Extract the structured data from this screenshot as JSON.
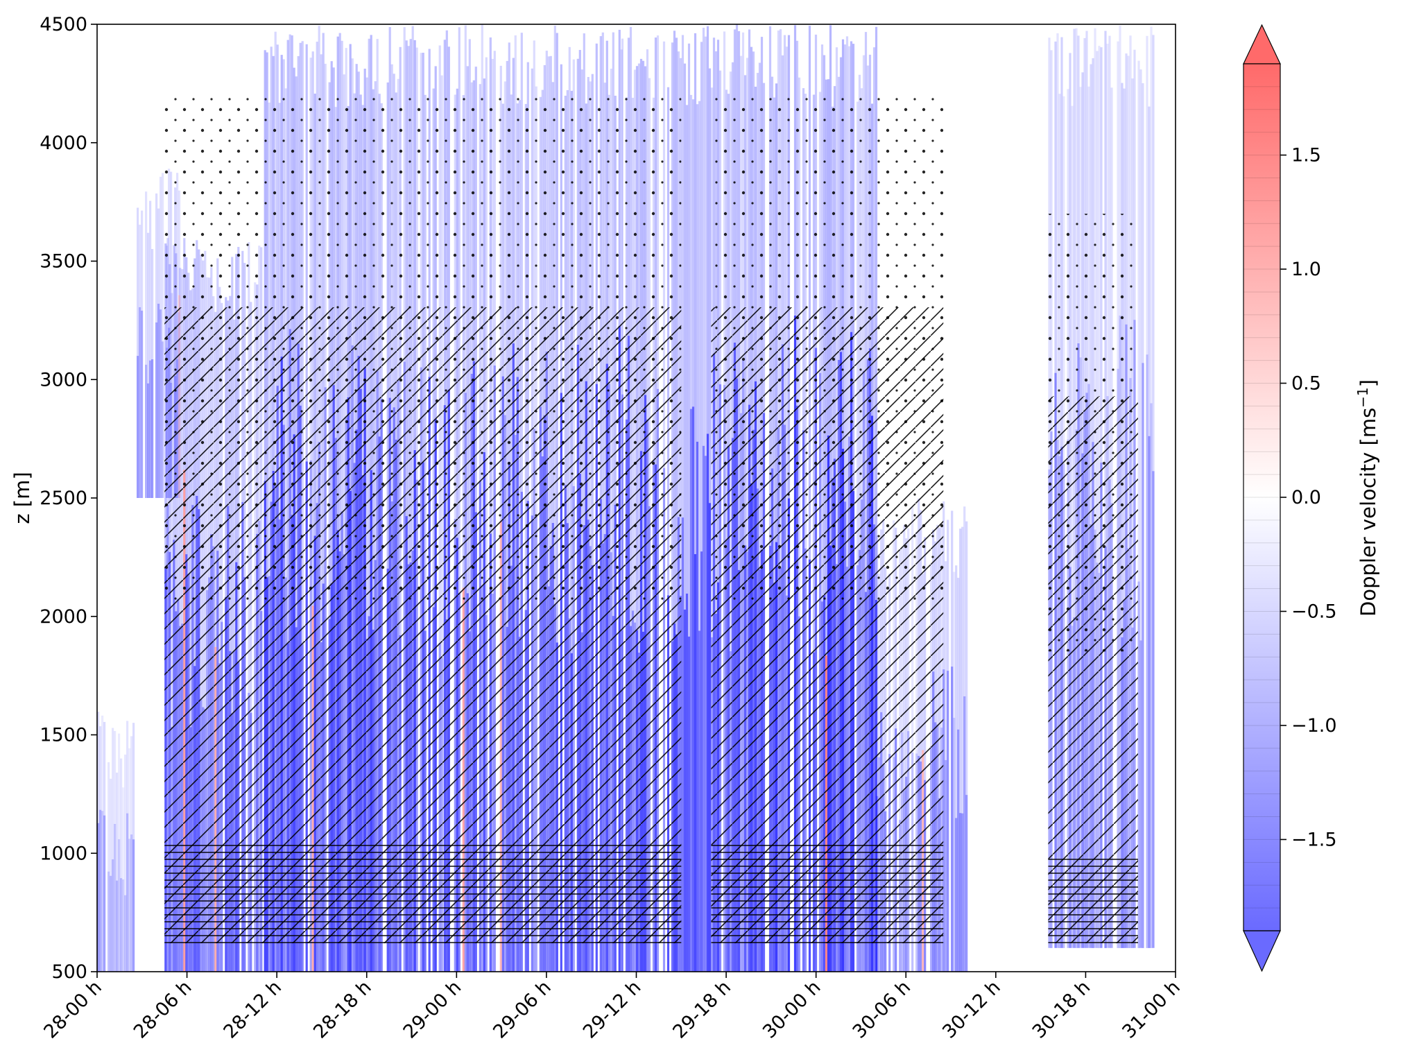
{
  "chart_data": {
    "type": "heatmap",
    "title": "",
    "xlabel": "",
    "ylabel": "z [m]",
    "x_ticks": [
      "28-00 h",
      "28-06 h",
      "28-12 h",
      "28-18 h",
      "29-00 h",
      "29-06 h",
      "29-12 h",
      "29-18 h",
      "30-00 h",
      "30-06 h",
      "30-12 h",
      "30-18 h",
      "31-00 h"
    ],
    "x_range_hours": [
      0,
      72
    ],
    "y_ticks": [
      500,
      1000,
      1500,
      2000,
      2500,
      3000,
      3500,
      4000,
      4500
    ],
    "ylim": [
      500,
      4500
    ],
    "grid": false,
    "colorbar": {
      "label": "Doppler velocity [ms",
      "label_sup": "−1",
      "label_end": "]",
      "ticks": [
        {
          "value": -1.5,
          "label": "−1.5"
        },
        {
          "value": -1.0,
          "label": "−1.0"
        },
        {
          "value": -0.5,
          "label": "−0.5"
        },
        {
          "value": 0.0,
          "label": "0.0"
        },
        {
          "value": 0.5,
          "label": "0.5"
        },
        {
          "value": 1.0,
          "label": "1.0"
        },
        {
          "value": 1.5,
          "label": "1.5"
        }
      ],
      "range": [
        -1.9,
        1.9
      ],
      "extend": "both",
      "cmap": "bwr",
      "low_color": "#6a6aff",
      "mid_color": "#ffffff",
      "high_color": "#ff6a6a"
    },
    "cloud_periods": [
      {
        "start_h": 0.0,
        "end_h": 2.5,
        "base_m": 500,
        "top_m": 1600,
        "intensity": 0.45
      },
      {
        "start_h": 2.5,
        "end_h": 5.5,
        "base_m": 2500,
        "top_m": 3900,
        "intensity": 0.5
      },
      {
        "start_h": 4.5,
        "end_h": 11.0,
        "base_m": 500,
        "top_m": 3600,
        "intensity": 0.75
      },
      {
        "start_h": 11.0,
        "end_h": 23.0,
        "base_m": 500,
        "top_m": 4500,
        "intensity": 0.85
      },
      {
        "start_h": 23.0,
        "end_h": 35.0,
        "base_m": 500,
        "top_m": 4500,
        "intensity": 0.8
      },
      {
        "start_h": 35.0,
        "end_h": 45.0,
        "base_m": 500,
        "top_m": 4500,
        "intensity": 0.8
      },
      {
        "start_h": 45.0,
        "end_h": 52.0,
        "base_m": 500,
        "top_m": 4500,
        "intensity": 0.9
      },
      {
        "start_h": 52.0,
        "end_h": 58.0,
        "base_m": 500,
        "top_m": 2500,
        "intensity": 0.55
      },
      {
        "start_h": 63.5,
        "end_h": 70.5,
        "base_m": 600,
        "top_m": 4500,
        "intensity": 0.55
      }
    ],
    "hatched_periods": [
      {
        "start_h": 4.5,
        "end_h": 39.0,
        "base_m": 620,
        "top_m": 4200
      },
      {
        "start_h": 41.0,
        "end_h": 56.5,
        "base_m": 620,
        "top_m": 4200
      },
      {
        "start_h": 63.5,
        "end_h": 69.5,
        "base_m": 620,
        "top_m": 3700
      }
    ]
  }
}
